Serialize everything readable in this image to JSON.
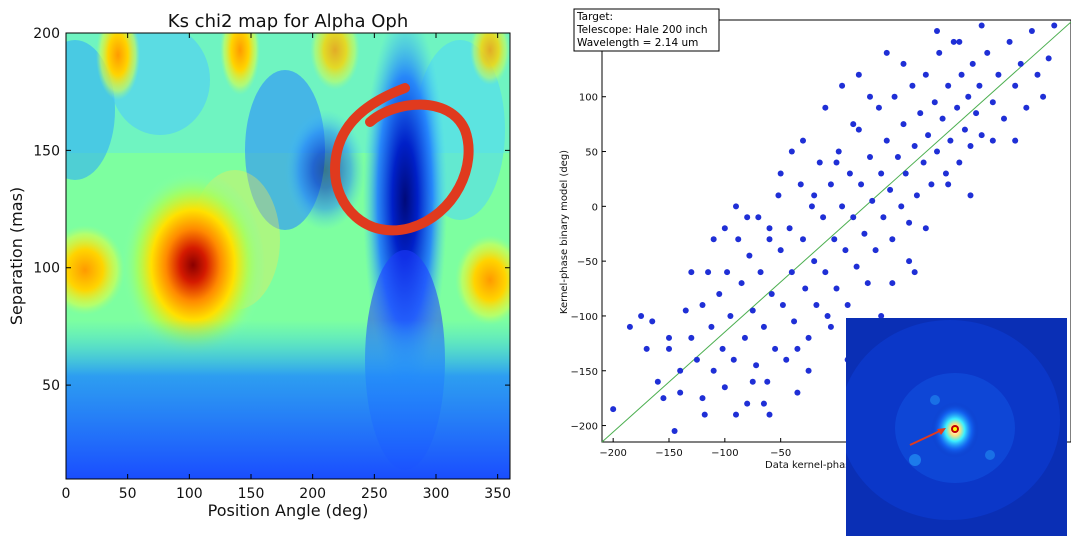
{
  "left_chart": {
    "title": "Ks chi2 map for Alpha Oph",
    "xlabel": "Position Angle (deg)",
    "ylabel": "Separation (mas)",
    "xticks": [
      "0",
      "50",
      "100",
      "150",
      "200",
      "250",
      "300",
      "350"
    ],
    "yticks": [
      "50",
      "100",
      "150",
      "200"
    ]
  },
  "right_chart": {
    "info_lines": [
      "Target:",
      "Telescope: Hale 200 inch",
      "Wavelength = 2.14 um"
    ],
    "xlabel": "Data kernel-phas",
    "ylabel": "Kernel-phase binary model (deg)",
    "xticks": [
      "−200",
      "−150",
      "−100",
      "−50"
    ],
    "yticks": [
      "150",
      "100",
      "50",
      "0",
      "−50",
      "−100",
      "−150",
      "−200"
    ]
  },
  "colors": {
    "point": "#1f2fd6",
    "fit_line": "#4caf50",
    "annotation": "#e03a1e",
    "inset_bg": "#0a2fb5"
  },
  "chart_data": [
    {
      "type": "heatmap",
      "title": "Ks chi2 map for Alpha Oph",
      "xlabel": "Position Angle (deg)",
      "ylabel": "Separation (mas)",
      "xlim": [
        0,
        360
      ],
      "ylim": [
        10,
        200
      ],
      "colormap": "jet",
      "features": [
        {
          "kind": "max",
          "x": 103,
          "y": 100,
          "level": 1.0
        },
        {
          "kind": "min",
          "x": 278,
          "y": 140,
          "level": 0.0
        }
      ]
    },
    {
      "type": "scatter",
      "xlabel": "Data kernel-phas",
      "ylabel": "Kernel-phase binary model (deg)",
      "xlim": [
        -210,
        210
      ],
      "ylim": [
        -215,
        170
      ],
      "fit_line": {
        "slope": 1.0,
        "intercept": 0
      },
      "points": [
        [
          -200,
          -185
        ],
        [
          -175,
          -100
        ],
        [
          -165,
          -105
        ],
        [
          -160,
          -160
        ],
        [
          -155,
          -175
        ],
        [
          -150,
          -130
        ],
        [
          -145,
          -205
        ],
        [
          -140,
          -150
        ],
        [
          -135,
          -95
        ],
        [
          -130,
          -120
        ],
        [
          -125,
          -140
        ],
        [
          -120,
          -175
        ],
        [
          -118,
          -190
        ],
        [
          -115,
          -60
        ],
        [
          -112,
          -110
        ],
        [
          -110,
          -150
        ],
        [
          -105,
          -80
        ],
        [
          -102,
          -130
        ],
        [
          -100,
          -165
        ],
        [
          -98,
          -60
        ],
        [
          -95,
          -100
        ],
        [
          -92,
          -140
        ],
        [
          -90,
          0
        ],
        [
          -88,
          -30
        ],
        [
          -85,
          -70
        ],
        [
          -82,
          -120
        ],
        [
          -80,
          -180
        ],
        [
          -78,
          -45
        ],
        [
          -75,
          -95
        ],
        [
          -72,
          -145
        ],
        [
          -70,
          -10
        ],
        [
          -68,
          -60
        ],
        [
          -65,
          -110
        ],
        [
          -62,
          -160
        ],
        [
          -60,
          -30
        ],
        [
          -58,
          -80
        ],
        [
          -55,
          -130
        ],
        [
          -52,
          10
        ],
        [
          -50,
          -40
        ],
        [
          -48,
          -90
        ],
        [
          -45,
          -140
        ],
        [
          -42,
          -20
        ],
        [
          -40,
          -60
        ],
        [
          -38,
          -105
        ],
        [
          -35,
          -170
        ],
        [
          -32,
          20
        ],
        [
          -30,
          -30
        ],
        [
          -28,
          -75
        ],
        [
          -25,
          -120
        ],
        [
          -22,
          0
        ],
        [
          -20,
          -50
        ],
        [
          -18,
          -90
        ],
        [
          -15,
          40
        ],
        [
          -12,
          -10
        ],
        [
          -10,
          -60
        ],
        [
          -8,
          -100
        ],
        [
          -5,
          20
        ],
        [
          -2,
          -30
        ],
        [
          0,
          -75
        ],
        [
          2,
          50
        ],
        [
          5,
          0
        ],
        [
          8,
          -40
        ],
        [
          10,
          -90
        ],
        [
          12,
          30
        ],
        [
          15,
          -10
        ],
        [
          18,
          -55
        ],
        [
          20,
          70
        ],
        [
          22,
          20
        ],
        [
          25,
          -25
        ],
        [
          28,
          -70
        ],
        [
          30,
          45
        ],
        [
          32,
          5
        ],
        [
          35,
          -40
        ],
        [
          38,
          90
        ],
        [
          40,
          30
        ],
        [
          42,
          -10
        ],
        [
          45,
          60
        ],
        [
          48,
          15
        ],
        [
          50,
          -30
        ],
        [
          52,
          100
        ],
        [
          55,
          45
        ],
        [
          58,
          0
        ],
        [
          60,
          75
        ],
        [
          62,
          30
        ],
        [
          65,
          -15
        ],
        [
          68,
          110
        ],
        [
          70,
          55
        ],
        [
          72,
          10
        ],
        [
          75,
          85
        ],
        [
          78,
          40
        ],
        [
          80,
          120
        ],
        [
          82,
          65
        ],
        [
          85,
          20
        ],
        [
          88,
          95
        ],
        [
          90,
          50
        ],
        [
          92,
          140
        ],
        [
          95,
          80
        ],
        [
          98,
          30
        ],
        [
          100,
          110
        ],
        [
          102,
          60
        ],
        [
          105,
          150
        ],
        [
          108,
          90
        ],
        [
          110,
          40
        ],
        [
          112,
          120
        ],
        [
          115,
          70
        ],
        [
          118,
          100
        ],
        [
          120,
          55
        ],
        [
          122,
          130
        ],
        [
          125,
          85
        ],
        [
          128,
          110
        ],
        [
          130,
          65
        ],
        [
          135,
          140
        ],
        [
          140,
          95
        ],
        [
          145,
          120
        ],
        [
          150,
          80
        ],
        [
          155,
          150
        ],
        [
          160,
          110
        ],
        [
          165,
          130
        ],
        [
          170,
          90
        ],
        [
          175,
          160
        ],
        [
          180,
          120
        ],
        [
          185,
          100
        ],
        [
          190,
          135
        ],
        [
          195,
          165
        ],
        [
          -170,
          -130
        ],
        [
          -140,
          -170
        ],
        [
          -60,
          -190
        ],
        [
          10,
          -140
        ],
        [
          40,
          -100
        ],
        [
          70,
          -60
        ],
        [
          -30,
          60
        ],
        [
          -50,
          30
        ],
        [
          -80,
          -10
        ],
        [
          60,
          130
        ],
        [
          30,
          100
        ],
        [
          0,
          40
        ],
        [
          -20,
          10
        ],
        [
          100,
          20
        ],
        [
          120,
          10
        ],
        [
          -100,
          -20
        ],
        [
          -120,
          -90
        ],
        [
          -90,
          -190
        ],
        [
          -110,
          -30
        ],
        [
          50,
          -70
        ],
        [
          80,
          -20
        ],
        [
          -75,
          -160
        ],
        [
          140,
          60
        ],
        [
          160,
          60
        ],
        [
          -10,
          90
        ],
        [
          20,
          120
        ],
        [
          -40,
          50
        ],
        [
          5,
          110
        ],
        [
          -60,
          -20
        ],
        [
          -130,
          -60
        ],
        [
          -150,
          -120
        ],
        [
          -185,
          -110
        ],
        [
          90,
          160
        ],
        [
          110,
          150
        ],
        [
          130,
          165
        ],
        [
          -35,
          -130
        ],
        [
          -65,
          -180
        ],
        [
          65,
          -50
        ],
        [
          15,
          75
        ],
        [
          -5,
          -110
        ],
        [
          -25,
          -150
        ],
        [
          45,
          140
        ]
      ]
    }
  ]
}
